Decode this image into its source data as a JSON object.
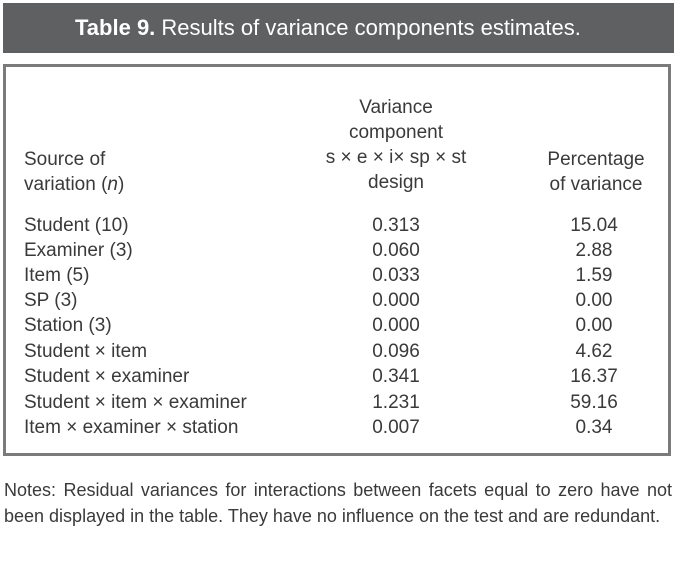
{
  "title": {
    "label": "Table 9.",
    "text": "Results of variance components estimates."
  },
  "table": {
    "headers": {
      "source": [
        "Source of",
        "variation (n)"
      ],
      "variance": [
        "Variance",
        "component",
        "s × e × i× sp × st",
        "design"
      ],
      "percentage": [
        "Percentage",
        "of variance"
      ]
    },
    "rows": [
      {
        "source": "Student (10)",
        "variance": "0.313",
        "percentage": "15.04"
      },
      {
        "source": "Examiner (3)",
        "variance": "0.060",
        "percentage": "2.88"
      },
      {
        "source": "Item (5)",
        "variance": "0.033",
        "percentage": "1.59"
      },
      {
        "source": "SP (3)",
        "variance": "0.000",
        "percentage": "0.00"
      },
      {
        "source": "Station (3)",
        "variance": "0.000",
        "percentage": "0.00"
      },
      {
        "source": "Student × item",
        "variance": "0.096",
        "percentage": "4.62"
      },
      {
        "source": "Student × examiner",
        "variance": "0.341",
        "percentage": "16.37"
      },
      {
        "source": "Student × item × examiner",
        "variance": "1.231",
        "percentage": "59.16"
      },
      {
        "source": "Item × examiner × station",
        "variance": "0.007",
        "percentage": "0.34"
      }
    ]
  },
  "notes": "Notes: Residual variances for interactions between facets equal to zero have not been displayed in the table. They have no influence on the test and are redundant."
}
